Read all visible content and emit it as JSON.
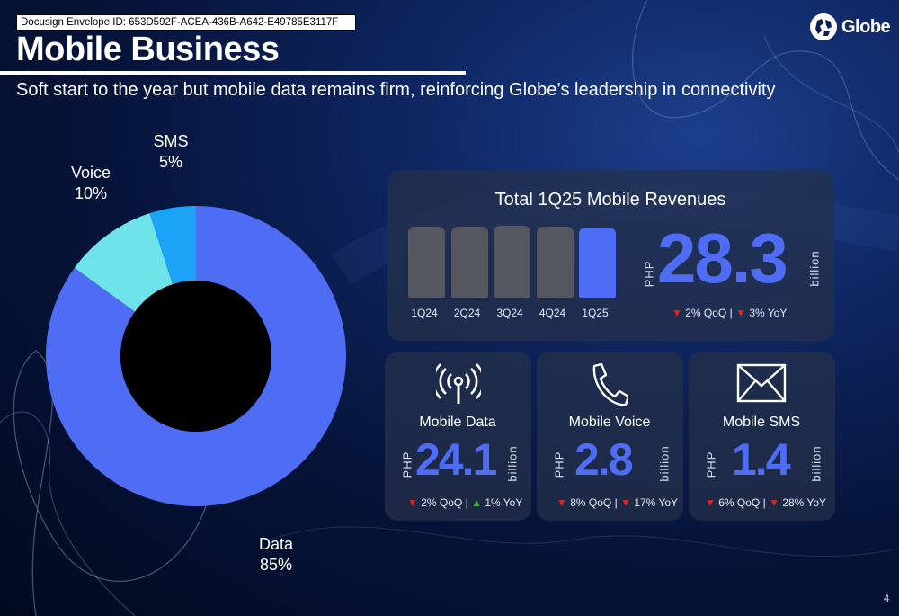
{
  "envelope_id": "Docusign Envelope ID: 653D592F-ACEA-436B-A642-E49785E3117F",
  "header": {
    "title": "Mobile Business",
    "subtitle": "Soft start to the year but mobile data remains firm, reinforcing Globe’s leadership in connectivity"
  },
  "logo": {
    "text": "Globe",
    "icon": "globe-logo-icon"
  },
  "colors": {
    "accent_blue": "#4f6df4",
    "voice_cyan": "#6ee4ea",
    "sms_blue": "#1aa3f7",
    "bar_gray": "#545760",
    "down_red": "#e3241b",
    "up_green": "#3fae3a"
  },
  "chart_data": [
    {
      "type": "pie",
      "subtype": "donut",
      "categories": [
        "Data",
        "Voice",
        "SMS"
      ],
      "values": [
        85,
        10,
        5
      ],
      "labels": [
        {
          "name": "Data",
          "pct": "85%"
        },
        {
          "name": "Voice",
          "pct": "10%"
        },
        {
          "name": "SMS",
          "pct": "5%"
        }
      ]
    },
    {
      "type": "bar",
      "title": "Total 1Q25 Mobile Revenues",
      "categories": [
        "1Q24",
        "2Q24",
        "3Q24",
        "4Q24",
        "1Q25"
      ],
      "values": [
        29.0,
        29.0,
        29.2,
        29.0,
        28.3
      ],
      "highlight": "1Q25"
    }
  ],
  "total": {
    "currency": "PHP",
    "value": "28.3",
    "unit": "billion",
    "qoq_arrow": "▼",
    "qoq": "2% QoQ",
    "sep": "|",
    "yoy_arrow": "▼",
    "yoy": "3% YoY"
  },
  "cards": [
    {
      "title": "Mobile Data",
      "icon": "signal-tower-icon",
      "currency": "PHP",
      "value": "24.1",
      "unit": "billion",
      "qoq_arrow": "▼",
      "qoq": "2% QoQ",
      "sep": "|",
      "yoy_arrow": "▲",
      "yoy": "1% YoY"
    },
    {
      "title": "Mobile Voice",
      "icon": "phone-icon",
      "currency": "PHP",
      "value": "2.8",
      "unit": "billion",
      "qoq_arrow": "▼",
      "qoq": "8% QoQ",
      "sep": "|",
      "yoy_arrow": "▼",
      "yoy": "17% YoY"
    },
    {
      "title": "Mobile SMS",
      "icon": "envelope-icon",
      "currency": "PHP",
      "value": "1.4",
      "unit": "billion",
      "qoq_arrow": "▼",
      "qoq": "6% QoQ",
      "sep": "|",
      "yoy_arrow": "▼",
      "yoy": "28% YoY"
    }
  ],
  "page_number": "4"
}
